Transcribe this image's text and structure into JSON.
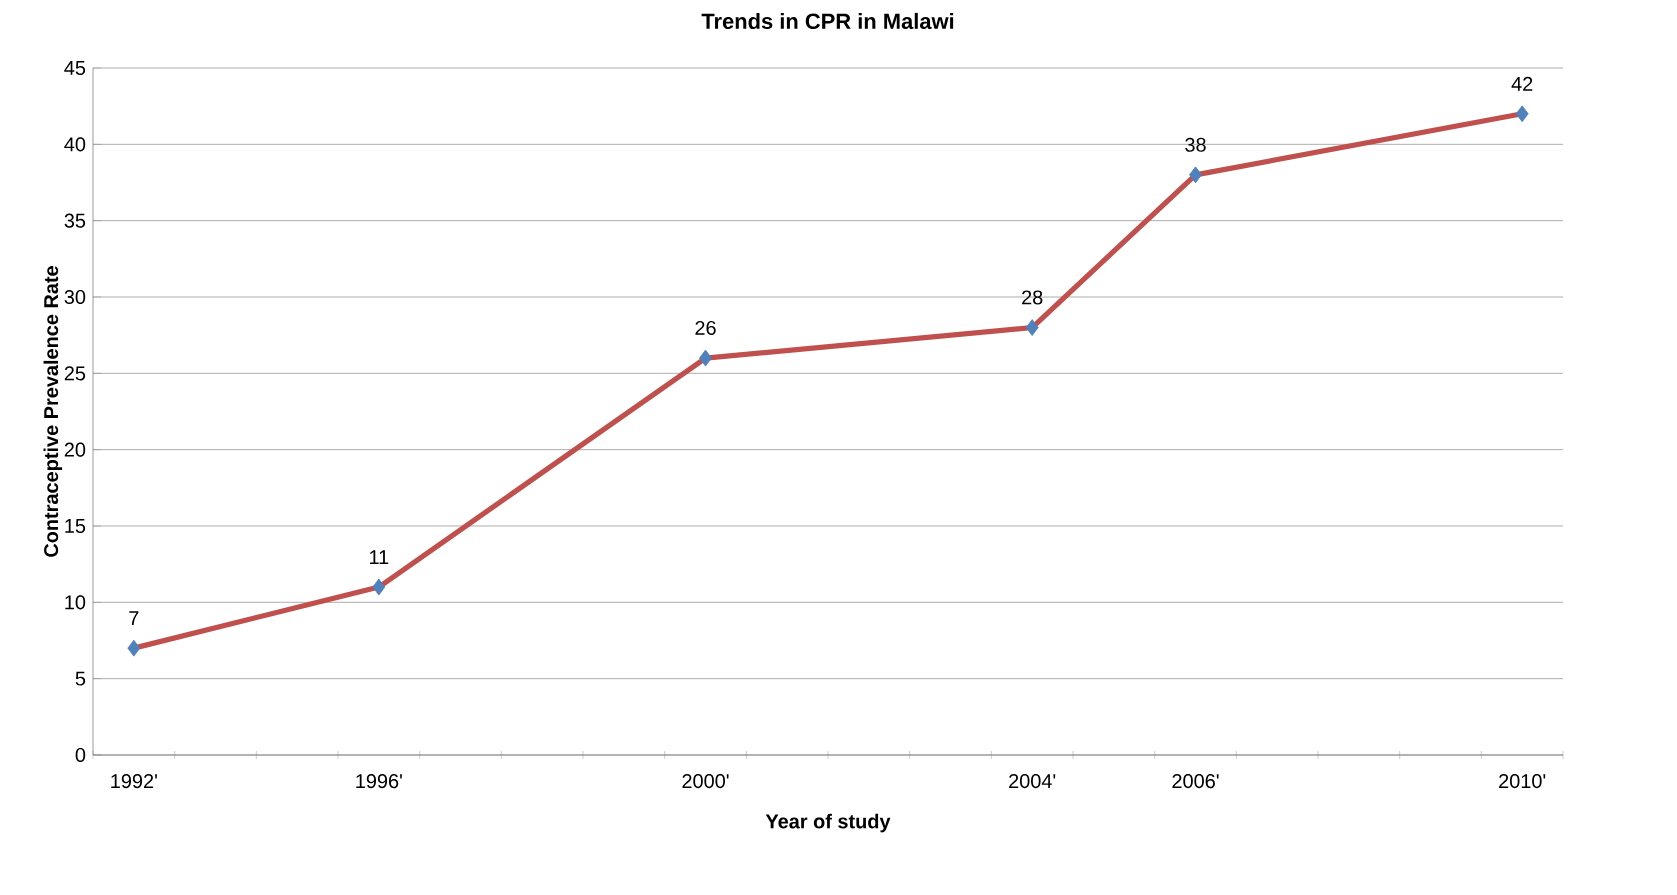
{
  "chart_data": {
    "type": "line",
    "title": "Trends in CPR in Malawi",
    "xlabel": "Year of study",
    "ylabel": "Contraceptive Prevalence Rate",
    "categories": [
      "1992'",
      null,
      null,
      "1996'",
      null,
      null,
      null,
      "2000'",
      null,
      null,
      null,
      "2004'",
      null,
      "2006'",
      null,
      null,
      null,
      "2010'"
    ],
    "ylim": [
      0,
      45
    ],
    "yticks": [
      0,
      5,
      10,
      15,
      20,
      25,
      30,
      35,
      40,
      45
    ],
    "grid": "y",
    "series": [
      {
        "color": "#c0504d",
        "marker": "none",
        "values": [
          7,
          null,
          null,
          11,
          null,
          null,
          null,
          26,
          null,
          null,
          null,
          28,
          null,
          38,
          null,
          null,
          null,
          42
        ]
      },
      {
        "type": "scatter",
        "color": "#4f81bd",
        "marker": "diamond",
        "data_labels": true,
        "values": [
          7,
          null,
          null,
          11,
          null,
          null,
          null,
          26,
          null,
          null,
          null,
          28,
          null,
          38,
          null,
          null,
          null,
          42
        ]
      }
    ]
  }
}
